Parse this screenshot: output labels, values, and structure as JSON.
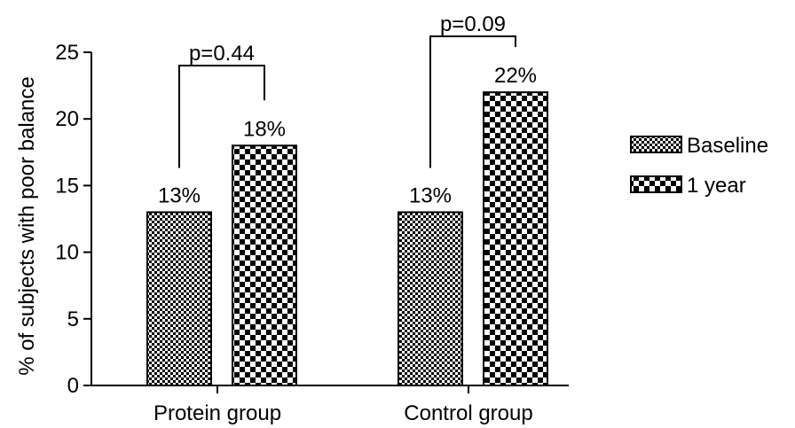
{
  "chart_data": {
    "type": "bar",
    "ylabel": "% of subjects with poor balance",
    "ylim": [
      0,
      25
    ],
    "yticks": [
      0,
      5,
      10,
      15,
      20,
      25
    ],
    "categories": [
      "Protein group",
      "Control group"
    ],
    "series": [
      {
        "name": "Baseline",
        "values": [
          13,
          13
        ],
        "labels": [
          "13%",
          "13%"
        ]
      },
      {
        "name": "1 year",
        "values": [
          18,
          22
        ],
        "labels": [
          "18%",
          "22%"
        ]
      }
    ],
    "comparisons": [
      {
        "category": "Protein group",
        "label": "p=0.44"
      },
      {
        "category": "Control group",
        "label": "p=0.09"
      }
    ],
    "grid": false,
    "legend_position": "right"
  }
}
